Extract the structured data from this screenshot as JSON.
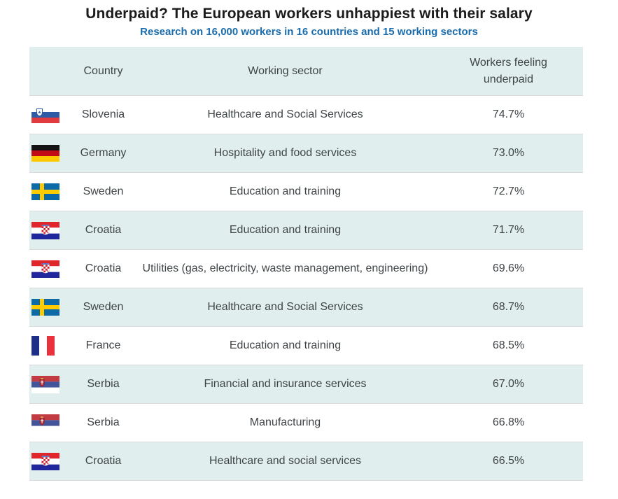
{
  "header": {
    "title": "Underpaid? The European workers unhappiest with their salary",
    "subtitle": "Research on 16,000 workers in 16 countries and 15 working sectors"
  },
  "table": {
    "columns": [
      "Country",
      "Working sector",
      "Workers feeling underpaid"
    ],
    "rows": [
      {
        "flag": "slovenia",
        "country": "Slovenia",
        "sector": "Healthcare and Social Services",
        "percent": "74.7%"
      },
      {
        "flag": "germany",
        "country": "Germany",
        "sector": "Hospitality and food services",
        "percent": "73.0%"
      },
      {
        "flag": "sweden",
        "country": "Sweden",
        "sector": "Education and training",
        "percent": "72.7%"
      },
      {
        "flag": "croatia",
        "country": "Croatia",
        "sector": "Education and training",
        "percent": "71.7%"
      },
      {
        "flag": "croatia",
        "country": "Croatia",
        "sector": "Utilities (gas, electricity, waste management, engineering)",
        "percent": "69.6%"
      },
      {
        "flag": "sweden",
        "country": "Sweden",
        "sector": "Healthcare and Social Services",
        "percent": "68.7%"
      },
      {
        "flag": "france",
        "country": "France",
        "sector": "Education and training",
        "percent": "68.5%"
      },
      {
        "flag": "serbia",
        "country": "Serbia",
        "sector": "Financial and insurance services",
        "percent": "67.0%"
      },
      {
        "flag": "serbia",
        "country": "Serbia",
        "sector": "Manufacturing",
        "percent": "66.8%"
      },
      {
        "flag": "croatia",
        "country": "Croatia",
        "sector": "Healthcare and social services",
        "percent": "66.5%"
      }
    ]
  },
  "colors": {
    "accent_row_teal": "#e0efed",
    "subtitle_blue": "#1a6cac",
    "body_text": "#3f4447",
    "row_separator": "#dadada"
  },
  "chart_data": {
    "type": "table",
    "title": "Underpaid? The European workers unhappiest with their salary",
    "subtitle": "Research on 16,000 workers in 16 countries and 15 working sectors",
    "columns": [
      "Country",
      "Working sector",
      "Workers feeling underpaid"
    ],
    "categories": [
      "Slovenia",
      "Germany",
      "Sweden",
      "Croatia",
      "Croatia",
      "Sweden",
      "France",
      "Serbia",
      "Serbia",
      "Croatia"
    ],
    "sectors": [
      "Healthcare and Social Services",
      "Hospitality and food services",
      "Education and training",
      "Education and training",
      "Utilities (gas, electricity, waste management, engineering)",
      "Healthcare and Social Services",
      "Education and training",
      "Financial and insurance services",
      "Manufacturing",
      "Healthcare and social services"
    ],
    "values": [
      74.7,
      73.0,
      72.7,
      71.7,
      69.6,
      68.7,
      68.5,
      67.0,
      66.8,
      66.5
    ],
    "value_unit": "%"
  }
}
